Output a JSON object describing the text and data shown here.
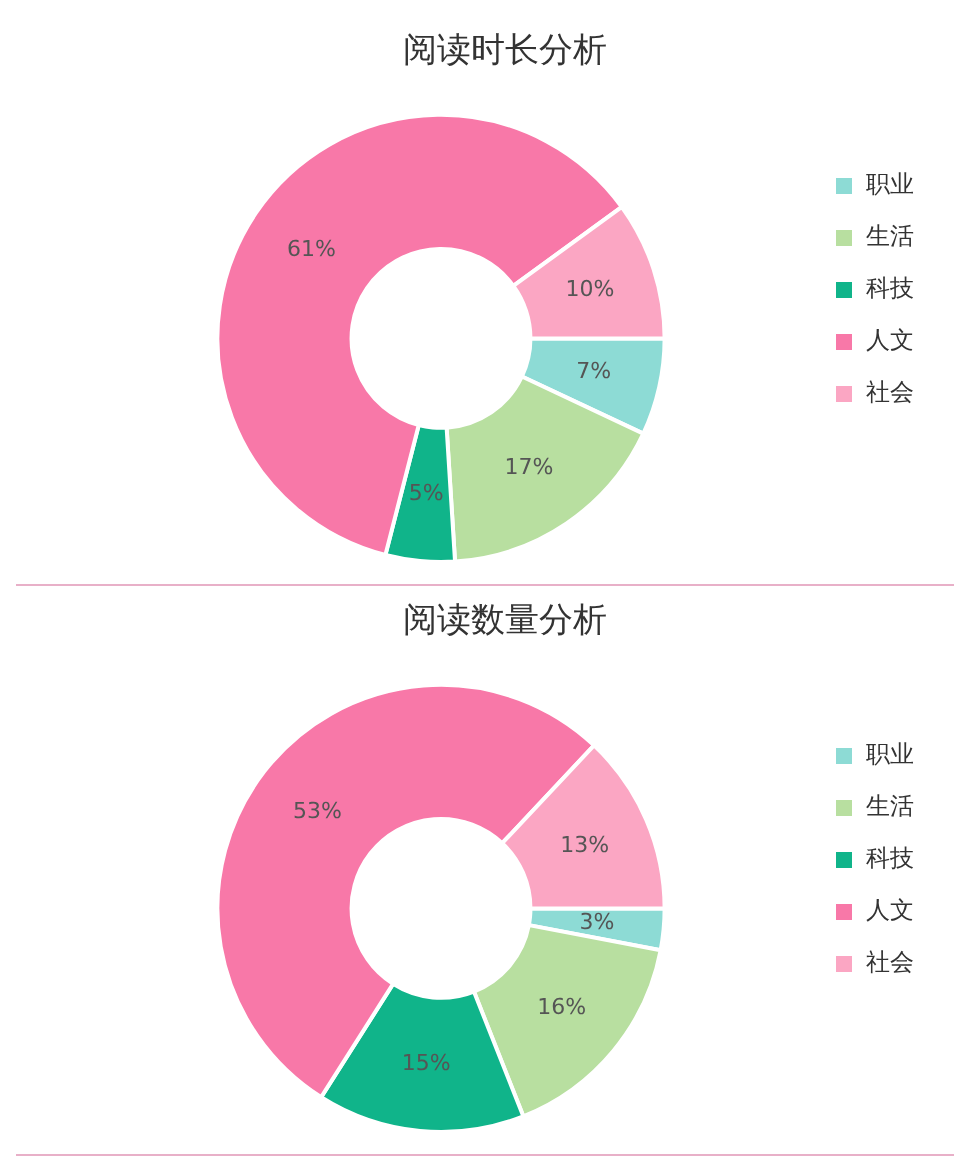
{
  "chart_data": [
    {
      "type": "donut",
      "title": "阅读时长分析",
      "categories": [
        "职业",
        "生活",
        "科技",
        "人文",
        "社会"
      ],
      "values": [
        7,
        17,
        5,
        61,
        10
      ],
      "colors": [
        "#8ddbd5",
        "#b8dfa0",
        "#10b48a",
        "#f878a8",
        "#fba6c3"
      ],
      "value_labels": [
        "7%",
        "17%",
        "5%",
        "61%",
        "10%"
      ],
      "legend": "right"
    },
    {
      "type": "donut",
      "title": "阅读数量分析",
      "categories": [
        "职业",
        "生活",
        "科技",
        "人文",
        "社会"
      ],
      "values": [
        3,
        16,
        15,
        53,
        13
      ],
      "colors": [
        "#8ddbd5",
        "#b8dfa0",
        "#10b48a",
        "#f878a8",
        "#fba6c3"
      ],
      "value_labels": [
        "3%",
        "16%",
        "15%",
        "53%",
        "13%"
      ],
      "legend": "right"
    }
  ]
}
